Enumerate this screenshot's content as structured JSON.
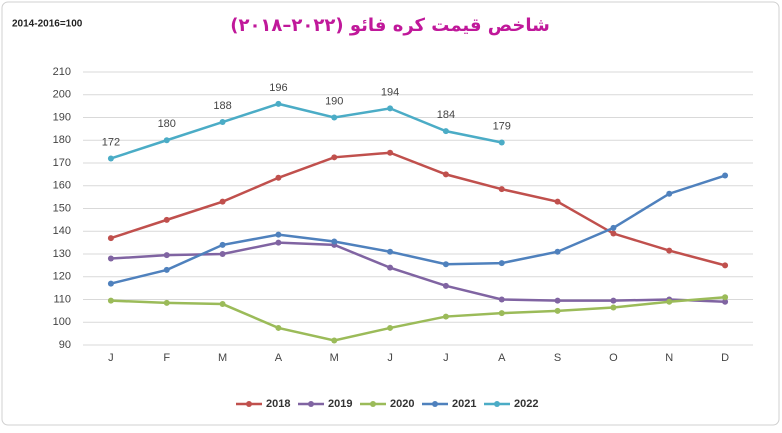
{
  "chart_data": {
    "type": "line",
    "title": "شاخص قیمت کره فائو (۲۰۲۲–۲۰۱۸)",
    "y_axis_label": "2014-2016=100",
    "categories": [
      "J",
      "F",
      "M",
      "A",
      "M",
      "J",
      "J",
      "A",
      "S",
      "O",
      "N",
      "D"
    ],
    "series": [
      {
        "name": "2018",
        "color": "#c0504d",
        "values": [
          137,
          145,
          153,
          163.5,
          172.5,
          174.5,
          165,
          158.5,
          153,
          139,
          131.5,
          125
        ]
      },
      {
        "name": "2019",
        "color": "#8064a2",
        "values": [
          128,
          129.5,
          130,
          135,
          134,
          124,
          116,
          110,
          109.5,
          109.5,
          110,
          109
        ]
      },
      {
        "name": "2020",
        "color": "#9bbb59",
        "values": [
          109.5,
          108.5,
          108,
          97.5,
          92,
          97.5,
          102.5,
          104,
          105,
          106.5,
          109,
          111
        ]
      },
      {
        "name": "2021",
        "color": "#4f81bd",
        "values": [
          117,
          123,
          134,
          138.5,
          135.5,
          131,
          125.5,
          126,
          131,
          141.5,
          156.5,
          164.5
        ]
      },
      {
        "name": "2022",
        "color": "#4bacc6",
        "values": [
          172,
          180,
          188,
          196,
          190,
          194,
          184,
          179,
          null,
          null,
          null,
          null
        ],
        "show_value_labels": true
      }
    ],
    "ylim": [
      90,
      210
    ],
    "yticks": [
      90,
      100,
      110,
      120,
      130,
      140,
      150,
      160,
      170,
      180,
      190,
      200,
      210
    ],
    "grid": true,
    "legend": "bottom"
  }
}
